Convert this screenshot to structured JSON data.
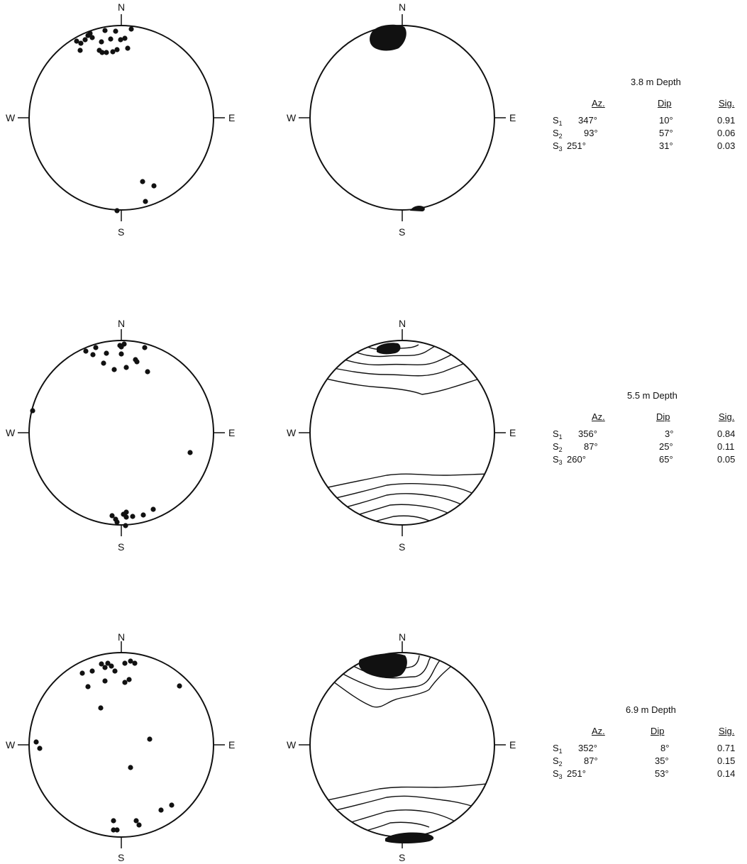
{
  "compass": {
    "n": "N",
    "s": "S",
    "e": "E",
    "w": "W"
  },
  "colors": {
    "ink": "#111111"
  },
  "panels": [
    {
      "depth": "3.8 m Depth",
      "headers": {
        "az": "Az.",
        "dip": "Dip",
        "sig": "Sig."
      },
      "rows": [
        {
          "name": "S",
          "sub": "1",
          "az": "347°",
          "dip": "10°",
          "sig": "0.91"
        },
        {
          "name": "S",
          "sub": "2",
          "az": "93°",
          "dip": "57°",
          "sig": "0.06"
        },
        {
          "name": "S",
          "sub": "3",
          "az": "251°",
          "dip": "31°",
          "sig": "0.03"
        }
      ]
    },
    {
      "depth": "5.5 m Depth",
      "headers": {
        "az": "Az.",
        "dip": "Dip",
        "sig": "Sig."
      },
      "rows": [
        {
          "name": "S",
          "sub": "1",
          "az": "356°",
          "dip": "3°",
          "sig": "0.84"
        },
        {
          "name": "S",
          "sub": "2",
          "az": "87°",
          "dip": "25°",
          "sig": "0.11"
        },
        {
          "name": "S",
          "sub": "3",
          "az": "260°",
          "dip": "65°",
          "sig": "0.05"
        }
      ]
    },
    {
      "depth": "6.9 m Depth",
      "headers": {
        "az": "Az.",
        "dip": "Dip",
        "sig": "Sig."
      },
      "rows": [
        {
          "name": "S",
          "sub": "1",
          "az": "352°",
          "dip": "8°",
          "sig": "0.71"
        },
        {
          "name": "S",
          "sub": "2",
          "az": "87°",
          "dip": "35°",
          "sig": "0.15"
        },
        {
          "name": "S",
          "sub": "3",
          "az": "251°",
          "dip": "53°",
          "sig": "0.14"
        }
      ]
    }
  ]
}
